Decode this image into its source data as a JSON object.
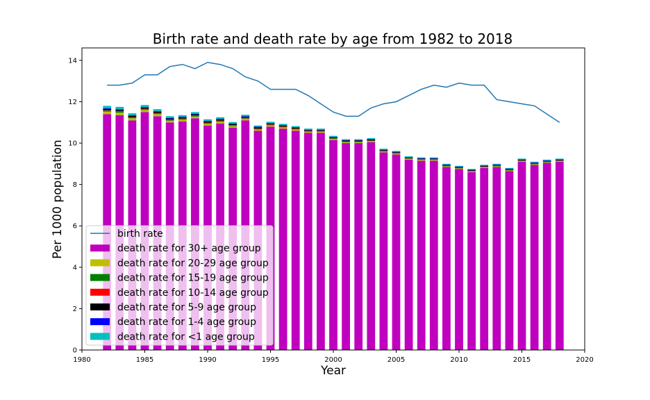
{
  "chart_data": {
    "type": "bar",
    "title": "Birth rate and death rate by age from 1982 to 2018",
    "xlabel": "Year",
    "ylabel": "Per 1000 population",
    "xlim": [
      1980,
      2020
    ],
    "ylim": [
      0,
      14.6
    ],
    "xticks": [
      1980,
      1985,
      1990,
      1995,
      2000,
      2005,
      2010,
      2015,
      2020
    ],
    "yticks": [
      0,
      2,
      4,
      6,
      8,
      10,
      12,
      14
    ],
    "grid": false,
    "legend_position": "lower-left",
    "stacked": true,
    "x": [
      1982,
      1983,
      1984,
      1985,
      1986,
      1987,
      1988,
      1989,
      1990,
      1991,
      1992,
      1993,
      1994,
      1995,
      1996,
      1997,
      1998,
      1999,
      2000,
      2001,
      2002,
      2003,
      2004,
      2005,
      2006,
      2007,
      2008,
      2009,
      2010,
      2011,
      2012,
      2013,
      2014,
      2015,
      2016,
      2017,
      2018
    ],
    "line_series": {
      "name": "birth rate",
      "color": "#1f77b4",
      "values": [
        12.8,
        12.8,
        12.9,
        13.3,
        13.3,
        13.7,
        13.8,
        13.6,
        13.9,
        13.8,
        13.6,
        13.2,
        13.0,
        12.6,
        12.6,
        12.6,
        12.3,
        11.9,
        11.5,
        11.3,
        11.3,
        11.7,
        11.9,
        12.0,
        12.3,
        12.6,
        12.8,
        12.7,
        12.9,
        12.8,
        12.8,
        12.1,
        12.0,
        11.9,
        11.8,
        11.4,
        11.0
      ]
    },
    "series": [
      {
        "name": "death rate for 30+ age group",
        "color": "#bf00bf",
        "values": [
          11.4,
          11.35,
          11.1,
          11.5,
          11.3,
          11.0,
          11.05,
          11.2,
          10.85,
          10.95,
          10.75,
          11.1,
          10.6,
          10.8,
          10.7,
          10.6,
          10.5,
          10.5,
          10.15,
          10.0,
          10.0,
          10.05,
          9.55,
          9.45,
          9.2,
          9.15,
          9.15,
          8.85,
          8.75,
          8.6,
          8.8,
          8.85,
          8.65,
          9.1,
          8.95,
          9.05,
          9.1
        ]
      },
      {
        "name": "death rate for 20-29 age group",
        "color": "#bfbf00",
        "values": [
          0.12,
          0.12,
          0.1,
          0.1,
          0.1,
          0.08,
          0.08,
          0.08,
          0.08,
          0.08,
          0.07,
          0.07,
          0.06,
          0.06,
          0.06,
          0.06,
          0.05,
          0.05,
          0.05,
          0.05,
          0.05,
          0.05,
          0.04,
          0.04,
          0.04,
          0.04,
          0.04,
          0.03,
          0.03,
          0.03,
          0.03,
          0.03,
          0.03,
          0.03,
          0.03,
          0.03,
          0.03
        ]
      },
      {
        "name": "death rate for 15-19 age group",
        "color": "#008000",
        "values": [
          0.05,
          0.05,
          0.04,
          0.04,
          0.04,
          0.04,
          0.04,
          0.04,
          0.04,
          0.04,
          0.03,
          0.03,
          0.03,
          0.03,
          0.03,
          0.03,
          0.03,
          0.03,
          0.03,
          0.02,
          0.02,
          0.02,
          0.02,
          0.02,
          0.02,
          0.02,
          0.02,
          0.02,
          0.02,
          0.02,
          0.02,
          0.02,
          0.02,
          0.02,
          0.02,
          0.02,
          0.02
        ]
      },
      {
        "name": "death rate for 10-14 age group",
        "color": "#ff0000",
        "values": [
          0.02,
          0.02,
          0.02,
          0.02,
          0.02,
          0.02,
          0.02,
          0.02,
          0.02,
          0.02,
          0.02,
          0.02,
          0.02,
          0.02,
          0.02,
          0.02,
          0.01,
          0.01,
          0.01,
          0.01,
          0.01,
          0.01,
          0.01,
          0.01,
          0.01,
          0.01,
          0.01,
          0.01,
          0.01,
          0.01,
          0.01,
          0.01,
          0.01,
          0.01,
          0.01,
          0.01,
          0.01
        ]
      },
      {
        "name": "death rate for 5-9 age group",
        "color": "#000000",
        "values": [
          0.06,
          0.06,
          0.05,
          0.05,
          0.05,
          0.05,
          0.05,
          0.05,
          0.05,
          0.05,
          0.05,
          0.05,
          0.05,
          0.04,
          0.04,
          0.04,
          0.04,
          0.04,
          0.04,
          0.04,
          0.04,
          0.04,
          0.04,
          0.04,
          0.03,
          0.03,
          0.03,
          0.03,
          0.03,
          0.03,
          0.03,
          0.03,
          0.03,
          0.03,
          0.03,
          0.03,
          0.03
        ]
      },
      {
        "name": "death rate for 1-4 age group",
        "color": "#0000ff",
        "values": [
          0.03,
          0.03,
          0.03,
          0.03,
          0.03,
          0.03,
          0.03,
          0.03,
          0.03,
          0.03,
          0.03,
          0.03,
          0.03,
          0.02,
          0.02,
          0.02,
          0.02,
          0.02,
          0.02,
          0.02,
          0.02,
          0.02,
          0.02,
          0.02,
          0.02,
          0.02,
          0.02,
          0.02,
          0.02,
          0.02,
          0.02,
          0.02,
          0.02,
          0.02,
          0.02,
          0.02,
          0.02
        ]
      },
      {
        "name": "death rate for <1 age group",
        "color": "#00bfbf",
        "values": [
          0.12,
          0.12,
          0.1,
          0.1,
          0.1,
          0.08,
          0.08,
          0.08,
          0.08,
          0.08,
          0.07,
          0.07,
          0.06,
          0.06,
          0.06,
          0.05,
          0.05,
          0.05,
          0.05,
          0.05,
          0.05,
          0.05,
          0.05,
          0.04,
          0.04,
          0.04,
          0.04,
          0.04,
          0.04,
          0.04,
          0.04,
          0.04,
          0.04,
          0.04,
          0.04,
          0.04,
          0.04
        ]
      }
    ]
  }
}
